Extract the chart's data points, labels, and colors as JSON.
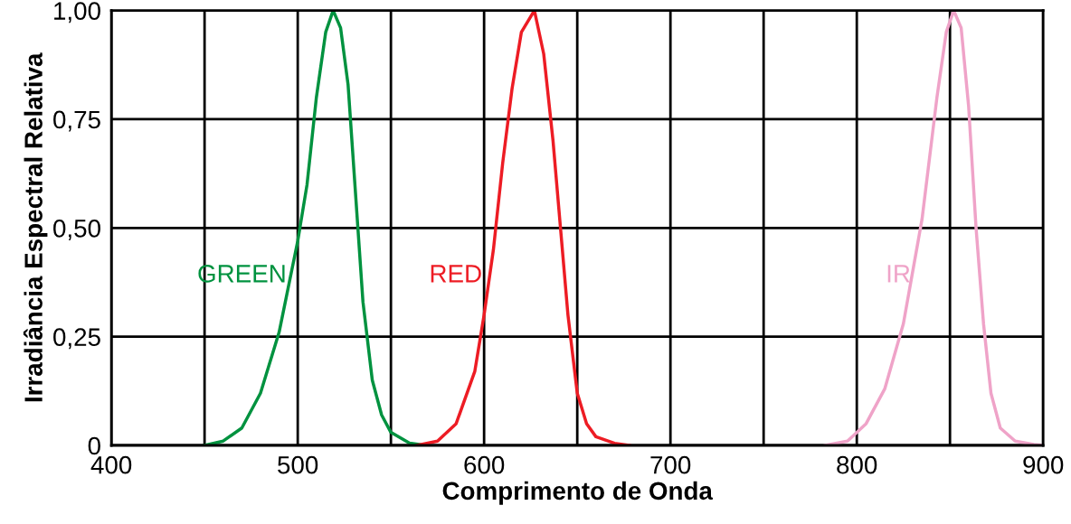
{
  "chart_data": {
    "type": "line",
    "xlabel": "Comprimento de Onda",
    "ylabel": "Irradiância Espectral Relativa",
    "xlim": [
      400,
      900
    ],
    "ylim": [
      0,
      1.0
    ],
    "xticks": [
      400,
      {
        "value": 450,
        "label": null
      },
      500,
      {
        "value": 550,
        "label": null
      },
      600,
      {
        "value": 650,
        "label": null
      },
      700,
      {
        "value": 750,
        "label": null
      },
      800,
      {
        "value": 850,
        "label": null
      },
      900
    ],
    "yticks": [
      {
        "value": 0,
        "label": "0"
      },
      {
        "value": 0.25,
        "label": "0,25"
      },
      {
        "value": 0.5,
        "label": "0,50"
      },
      {
        "value": 0.75,
        "label": "0,75"
      },
      {
        "value": 1.0,
        "label": "1,00"
      }
    ],
    "grid": true,
    "legend": false,
    "series": [
      {
        "name": "GREEN",
        "color": "#00923f",
        "x": [
          450,
          460,
          470,
          480,
          490,
          500,
          505,
          510,
          515,
          519,
          523,
          527,
          531,
          535,
          540,
          545,
          550,
          560,
          569
        ],
        "values": [
          0,
          0.01,
          0.04,
          0.12,
          0.26,
          0.47,
          0.6,
          0.8,
          0.95,
          1.0,
          0.96,
          0.83,
          0.58,
          0.33,
          0.15,
          0.07,
          0.03,
          0.005,
          0
        ]
      },
      {
        "name": "RED",
        "color": "#ed1c24",
        "x": [
          564,
          575,
          585,
          595,
          600,
          605,
          610,
          615,
          620,
          627,
          632,
          637,
          641,
          645,
          650,
          655,
          660,
          670,
          678
        ],
        "values": [
          0,
          0.01,
          0.05,
          0.17,
          0.3,
          0.45,
          0.65,
          0.82,
          0.95,
          1.0,
          0.9,
          0.7,
          0.5,
          0.3,
          0.12,
          0.05,
          0.02,
          0.005,
          0
        ]
      },
      {
        "name": "IR",
        "color": "#efa3c8",
        "x": [
          783,
          795,
          805,
          815,
          825,
          835,
          843,
          848,
          852,
          856,
          860,
          864,
          868,
          872,
          877,
          885,
          895,
          900
        ],
        "values": [
          0,
          0.01,
          0.05,
          0.13,
          0.28,
          0.52,
          0.8,
          0.95,
          1.0,
          0.96,
          0.78,
          0.5,
          0.28,
          0.12,
          0.04,
          0.01,
          0.002,
          0
        ]
      }
    ]
  }
}
